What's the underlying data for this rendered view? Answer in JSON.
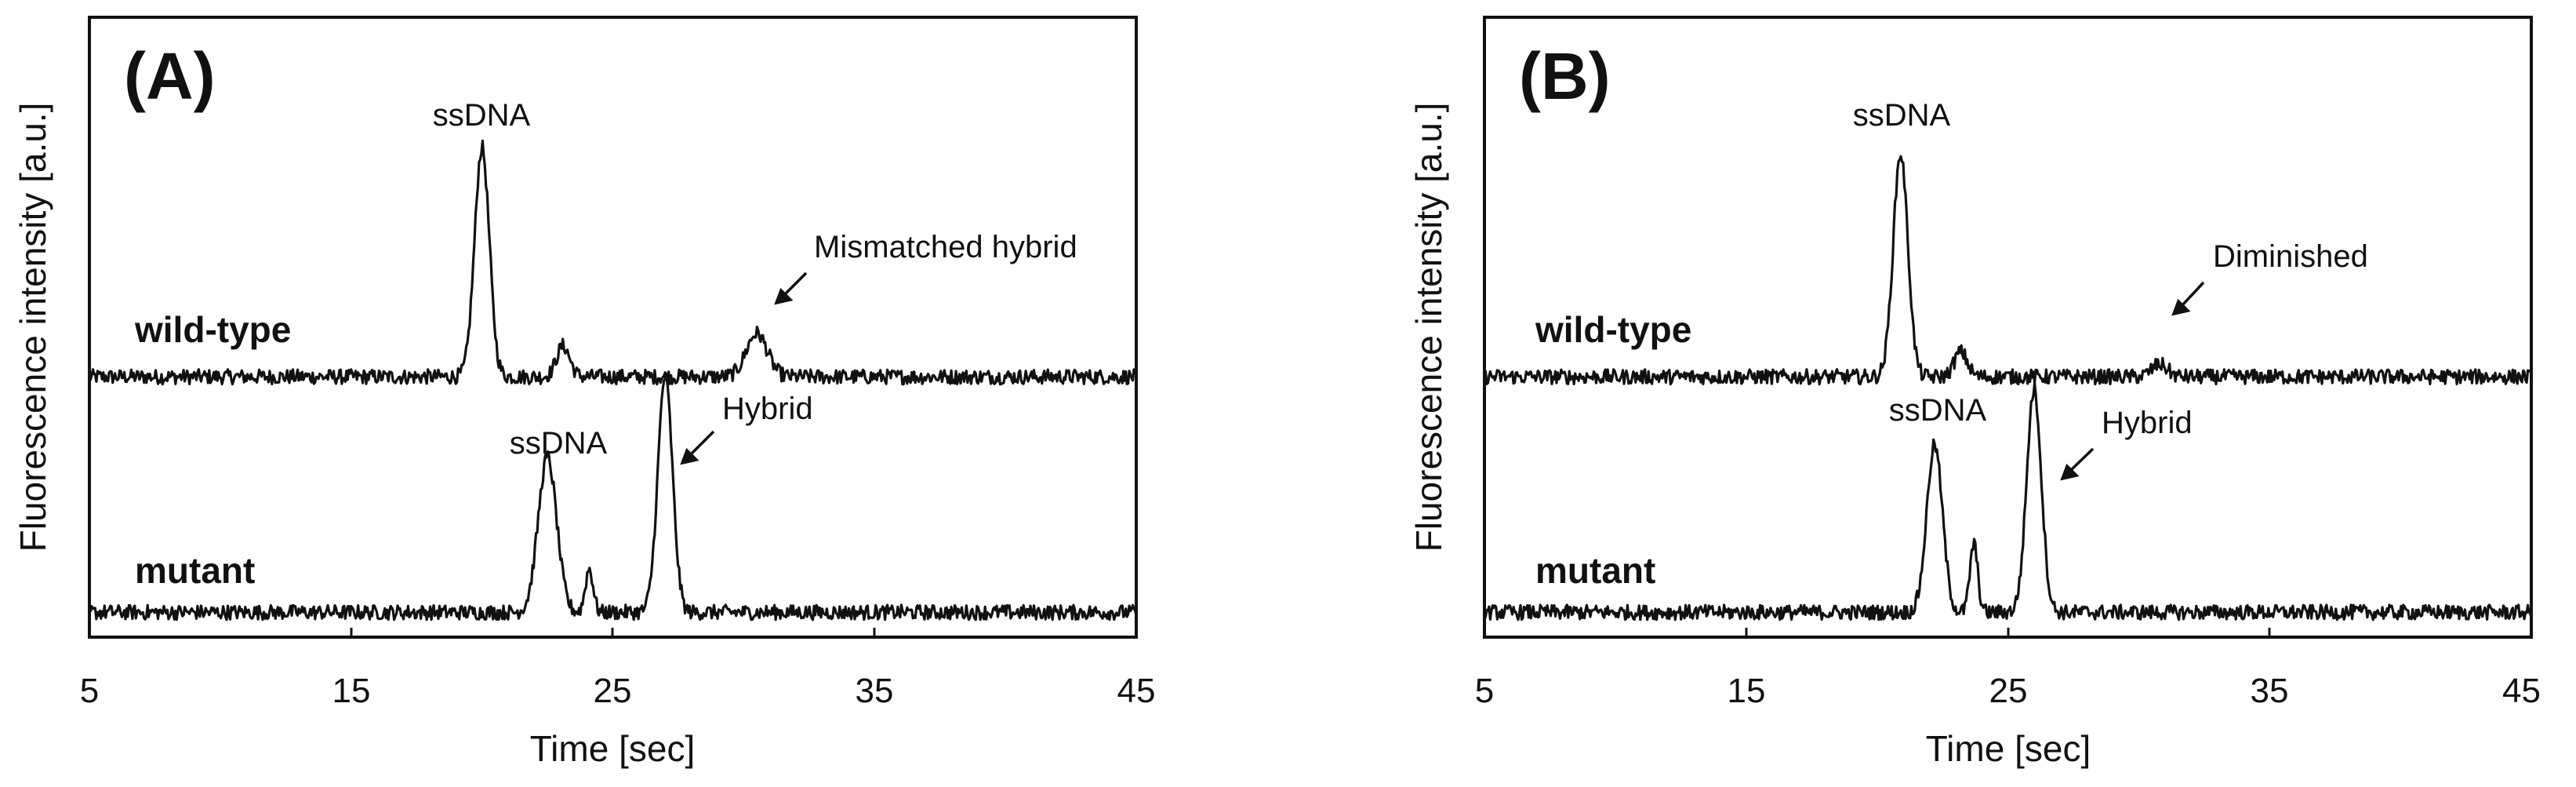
{
  "chart_data": [
    {
      "type": "line",
      "panel": "(A)",
      "xlabel": "Time [sec]",
      "ylabel": "Fluorescence intensity [a.u.]",
      "xlim": [
        5,
        45
      ],
      "xticks": [
        5,
        15,
        25,
        35,
        45
      ],
      "grid": false,
      "series": [
        {
          "name": "wild-type",
          "baseline": 0.42,
          "noise": 0.012,
          "peaks": [
            {
              "x": 20.0,
              "height": 0.37,
              "width": 0.28
            },
            {
              "x": 23.1,
              "height": 0.05,
              "width": 0.25
            },
            {
              "x": 30.5,
              "height": 0.07,
              "width": 0.4
            }
          ]
        },
        {
          "name": "mutant",
          "baseline": 0.04,
          "noise": 0.012,
          "peaks": [
            {
              "x": 22.5,
              "height": 0.25,
              "width": 0.35
            },
            {
              "x": 24.1,
              "height": 0.07,
              "width": 0.15
            },
            {
              "x": 27.0,
              "height": 0.38,
              "width": 0.28
            }
          ]
        }
      ],
      "annotations": [
        {
          "text": "ssDNA",
          "series": "wild-type",
          "arrow": false
        },
        {
          "text": "Mismatched hybrid",
          "series": "wild-type",
          "arrow": true
        },
        {
          "text": "ssDNA",
          "series": "mutant",
          "arrow": false
        },
        {
          "text": "Hybrid",
          "series": "mutant",
          "arrow": true
        }
      ]
    },
    {
      "type": "line",
      "panel": "(B)",
      "xlabel": "Time [sec]",
      "ylabel": "Fluorescence intensity [a.u.]",
      "xlim": [
        5,
        45
      ],
      "xticks": [
        5,
        15,
        25,
        35,
        45
      ],
      "grid": false,
      "series": [
        {
          "name": "wild-type",
          "baseline": 0.42,
          "noise": 0.012,
          "peaks": [
            {
              "x": 20.9,
              "height": 0.36,
              "width": 0.28
            },
            {
              "x": 23.2,
              "height": 0.04,
              "width": 0.25
            },
            {
              "x": 30.8,
              "height": 0.02,
              "width": 0.3
            }
          ]
        },
        {
          "name": "mutant",
          "baseline": 0.04,
          "noise": 0.012,
          "peaks": [
            {
              "x": 22.2,
              "height": 0.27,
              "width": 0.3
            },
            {
              "x": 23.7,
              "height": 0.11,
              "width": 0.15
            },
            {
              "x": 26.0,
              "height": 0.36,
              "width": 0.28
            }
          ]
        }
      ],
      "annotations": [
        {
          "text": "ssDNA",
          "series": "wild-type",
          "arrow": false
        },
        {
          "text": "Diminished",
          "series": "wild-type",
          "arrow": true
        },
        {
          "text": "ssDNA",
          "series": "mutant",
          "arrow": false
        },
        {
          "text": "Hybrid",
          "series": "mutant",
          "arrow": true
        }
      ]
    }
  ]
}
